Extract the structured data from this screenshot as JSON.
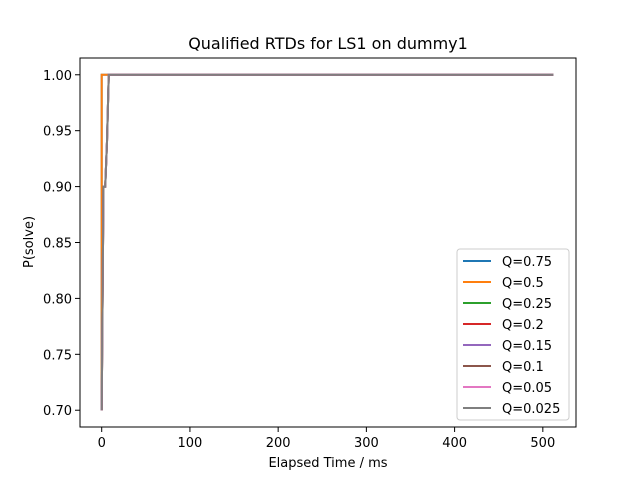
{
  "chart_data": {
    "type": "line",
    "title": "Qualified RTDs for LS1 on dummy1",
    "xlabel": "Elapsed Time / ms",
    "ylabel": "P(solve)",
    "xlim": [
      -24.6,
      537.6
    ],
    "ylim": [
      0.685,
      1.015
    ],
    "xticks": [
      0,
      100,
      200,
      300,
      400,
      500
    ],
    "yticks": [
      0.7,
      0.75,
      0.8,
      0.85,
      0.9,
      0.95,
      1.0
    ],
    "xtick_labels": [
      "0",
      "100",
      "200",
      "300",
      "400",
      "500"
    ],
    "ytick_labels": [
      "0.70",
      "0.75",
      "0.80",
      "0.85",
      "0.90",
      "0.95",
      "1.00"
    ],
    "grid": false,
    "legend_position": "lower-right",
    "series": [
      {
        "name": "Q=0.75",
        "color": "#1f77b4",
        "x": [
          0,
          0,
          512
        ],
        "y": [
          0.7,
          1.0,
          1.0
        ]
      },
      {
        "name": "Q=0.5",
        "color": "#ff7f0e",
        "x": [
          0,
          0,
          512
        ],
        "y": [
          0.7,
          1.0,
          1.0
        ]
      },
      {
        "name": "Q=0.25",
        "color": "#2ca02c",
        "x": [
          0,
          1,
          2,
          3,
          4,
          5,
          6,
          7,
          8,
          512
        ],
        "y": [
          0.7,
          0.8,
          0.9,
          0.9,
          0.9,
          0.92,
          0.94,
          0.97,
          1.0,
          1.0
        ]
      },
      {
        "name": "Q=0.2",
        "color": "#d62728",
        "x": [
          0,
          1,
          2,
          3,
          4,
          5,
          6,
          7,
          8,
          512
        ],
        "y": [
          0.7,
          0.8,
          0.9,
          0.9,
          0.9,
          0.92,
          0.94,
          0.97,
          1.0,
          1.0
        ]
      },
      {
        "name": "Q=0.15",
        "color": "#9467bd",
        "x": [
          0,
          1,
          2,
          3,
          4,
          5,
          6,
          7,
          8,
          512
        ],
        "y": [
          0.7,
          0.8,
          0.9,
          0.9,
          0.9,
          0.92,
          0.94,
          0.97,
          1.0,
          1.0
        ]
      },
      {
        "name": "Q=0.1",
        "color": "#8c564b",
        "x": [
          0,
          1,
          2,
          3,
          4,
          5,
          6,
          7,
          8,
          512
        ],
        "y": [
          0.7,
          0.8,
          0.9,
          0.9,
          0.9,
          0.92,
          0.94,
          0.97,
          1.0,
          1.0
        ]
      },
      {
        "name": "Q=0.05",
        "color": "#e377c2",
        "x": [
          0,
          1,
          2,
          3,
          4,
          5,
          6,
          7,
          8,
          512
        ],
        "y": [
          0.7,
          0.8,
          0.9,
          0.9,
          0.9,
          0.92,
          0.94,
          0.97,
          1.0,
          1.0
        ]
      },
      {
        "name": "Q=0.025",
        "color": "#7f7f7f",
        "x": [
          0,
          1,
          2,
          3,
          4,
          5,
          6,
          7,
          8,
          512
        ],
        "y": [
          0.7,
          0.8,
          0.9,
          0.9,
          0.9,
          0.92,
          0.94,
          0.97,
          1.0,
          1.0
        ]
      }
    ]
  }
}
